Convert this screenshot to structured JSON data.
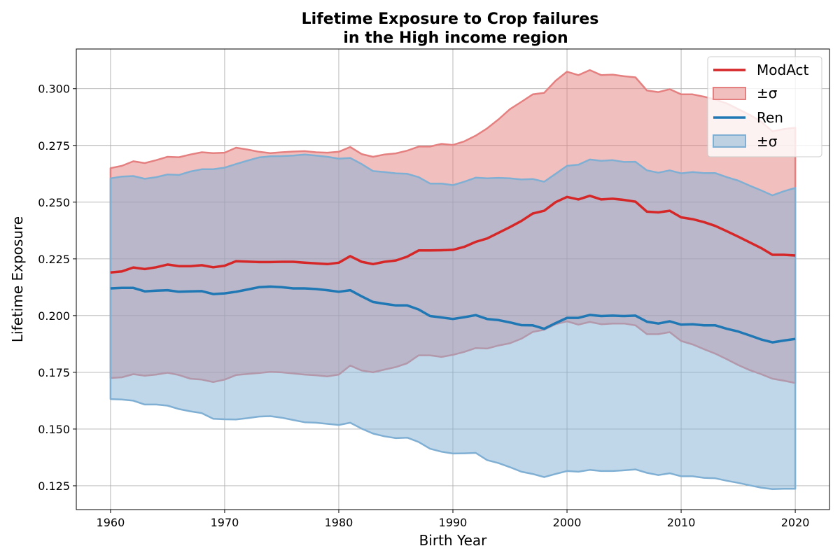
{
  "chart_data": {
    "type": "line",
    "title": "Lifetime Exposure to Crop failures",
    "subtitle": "in the High income region",
    "xlabel": "Birth Year",
    "ylabel": "Lifetime Exposure",
    "xlim": [
      1957,
      2023
    ],
    "ylim": [
      0.1145,
      0.3175
    ],
    "xticks": [
      1960,
      1970,
      1980,
      1990,
      2000,
      2010,
      2020
    ],
    "yticks": [
      0.125,
      0.15,
      0.175,
      0.2,
      0.225,
      0.25,
      0.275,
      0.3
    ],
    "grid": true,
    "legend_position": "top-right",
    "legend_band_label": "±σ",
    "x": [
      1960,
      1961,
      1962,
      1963,
      1964,
      1965,
      1966,
      1967,
      1968,
      1969,
      1970,
      1971,
      1972,
      1973,
      1974,
      1975,
      1976,
      1977,
      1978,
      1979,
      1980,
      1981,
      1982,
      1983,
      1984,
      1985,
      1986,
      1987,
      1988,
      1989,
      1990,
      1991,
      1992,
      1993,
      1994,
      1995,
      1996,
      1997,
      1998,
      1999,
      2000,
      2001,
      2002,
      2003,
      2004,
      2005,
      2006,
      2007,
      2008,
      2009,
      2010,
      2011,
      2012,
      2013,
      2014,
      2015,
      2016,
      2017,
      2018,
      2019,
      2020
    ],
    "series": [
      {
        "name": "ModAct",
        "color": "#d62728",
        "band_color": "#e58080",
        "mean": [
          0.219,
          0.2195,
          0.2212,
          0.2205,
          0.2213,
          0.2225,
          0.2218,
          0.2218,
          0.2222,
          0.2213,
          0.222,
          0.224,
          0.2238,
          0.2236,
          0.2236,
          0.2237,
          0.2237,
          0.2233,
          0.223,
          0.2227,
          0.2233,
          0.2262,
          0.2237,
          0.2227,
          0.2237,
          0.2243,
          0.226,
          0.2287,
          0.2287,
          0.2288,
          0.229,
          0.2303,
          0.2325,
          0.234,
          0.2365,
          0.239,
          0.2417,
          0.245,
          0.2462,
          0.25,
          0.2523,
          0.2512,
          0.2528,
          0.2512,
          0.2515,
          0.251,
          0.2502,
          0.2458,
          0.2455,
          0.2462,
          0.2433,
          0.2425,
          0.2412,
          0.2395,
          0.2372,
          0.2348,
          0.2323,
          0.2298,
          0.2268,
          0.2268,
          0.2265
        ],
        "upper": [
          0.265,
          0.266,
          0.268,
          0.2672,
          0.2685,
          0.27,
          0.2698,
          0.271,
          0.272,
          0.2716,
          0.2718,
          0.274,
          0.2732,
          0.2722,
          0.2716,
          0.272,
          0.2723,
          0.2725,
          0.272,
          0.2718,
          0.2722,
          0.2743,
          0.2712,
          0.27,
          0.271,
          0.2715,
          0.2727,
          0.2745,
          0.2745,
          0.2757,
          0.2752,
          0.2768,
          0.2793,
          0.2825,
          0.2865,
          0.291,
          0.2942,
          0.2975,
          0.2982,
          0.3035,
          0.3075,
          0.306,
          0.3082,
          0.306,
          0.3062,
          0.3055,
          0.305,
          0.2992,
          0.2985,
          0.2998,
          0.2975,
          0.2975,
          0.2965,
          0.2952,
          0.2935,
          0.291,
          0.2885,
          0.2855,
          0.2812,
          0.2822,
          0.2828
        ],
        "lower": [
          0.1725,
          0.1728,
          0.1742,
          0.1735,
          0.174,
          0.1748,
          0.1738,
          0.1722,
          0.1718,
          0.1707,
          0.1718,
          0.1738,
          0.1743,
          0.1747,
          0.1752,
          0.175,
          0.1745,
          0.174,
          0.1737,
          0.1732,
          0.174,
          0.178,
          0.1758,
          0.175,
          0.1762,
          0.1773,
          0.179,
          0.1825,
          0.1825,
          0.1818,
          0.1827,
          0.184,
          0.1857,
          0.1855,
          0.1868,
          0.1878,
          0.1898,
          0.1928,
          0.1938,
          0.1962,
          0.1975,
          0.196,
          0.1972,
          0.1962,
          0.1965,
          0.1965,
          0.1957,
          0.1918,
          0.1918,
          0.1927,
          0.1888,
          0.1873,
          0.1852,
          0.1832,
          0.1808,
          0.1782,
          0.176,
          0.1742,
          0.1722,
          0.1713,
          0.1703
        ]
      },
      {
        "name": "Ren",
        "color": "#1f77b4",
        "band_color": "#80afd4",
        "mean": [
          0.212,
          0.2122,
          0.2122,
          0.2107,
          0.211,
          0.2112,
          0.2105,
          0.2107,
          0.2108,
          0.2095,
          0.2098,
          0.2105,
          0.2115,
          0.2125,
          0.2128,
          0.2125,
          0.212,
          0.212,
          0.2117,
          0.2112,
          0.2105,
          0.2112,
          0.2085,
          0.206,
          0.2052,
          0.2045,
          0.2045,
          0.2027,
          0.1998,
          0.1992,
          0.1985,
          0.1993,
          0.2002,
          0.1985,
          0.198,
          0.197,
          0.1958,
          0.1957,
          0.1942,
          0.1967,
          0.199,
          0.199,
          0.2003,
          0.1998,
          0.2,
          0.1998,
          0.2,
          0.1973,
          0.1965,
          0.1975,
          0.196,
          0.1962,
          0.1957,
          0.1957,
          0.1942,
          0.193,
          0.1913,
          0.1895,
          0.1882,
          0.189,
          0.1897
        ],
        "upper": [
          0.2605,
          0.2613,
          0.2615,
          0.2603,
          0.261,
          0.2622,
          0.262,
          0.2635,
          0.2645,
          0.2645,
          0.2652,
          0.2668,
          0.2683,
          0.2697,
          0.2702,
          0.2703,
          0.2705,
          0.271,
          0.2705,
          0.27,
          0.2692,
          0.2695,
          0.2668,
          0.2637,
          0.2633,
          0.2627,
          0.2625,
          0.261,
          0.2582,
          0.2582,
          0.2575,
          0.259,
          0.2608,
          0.2605,
          0.2607,
          0.2605,
          0.26,
          0.2602,
          0.259,
          0.2625,
          0.266,
          0.2665,
          0.2688,
          0.2682,
          0.2685,
          0.2677,
          0.2678,
          0.264,
          0.263,
          0.264,
          0.2627,
          0.2633,
          0.2628,
          0.2628,
          0.261,
          0.2595,
          0.2573,
          0.2552,
          0.253,
          0.2548,
          0.2563
        ],
        "lower": [
          0.1632,
          0.163,
          0.1625,
          0.1608,
          0.1608,
          0.1603,
          0.1588,
          0.1578,
          0.157,
          0.1545,
          0.1543,
          0.1542,
          0.1548,
          0.1555,
          0.1557,
          0.155,
          0.154,
          0.153,
          0.1528,
          0.1523,
          0.1518,
          0.1528,
          0.1502,
          0.148,
          0.1468,
          0.146,
          0.1462,
          0.1443,
          0.1413,
          0.14,
          0.1392,
          0.1393,
          0.1395,
          0.1363,
          0.135,
          0.1332,
          0.1312,
          0.1302,
          0.1288,
          0.1302,
          0.1315,
          0.1312,
          0.132,
          0.1315,
          0.1315,
          0.1318,
          0.1322,
          0.1307,
          0.1297,
          0.1305,
          0.1292,
          0.1292,
          0.1285,
          0.1283,
          0.1272,
          0.1263,
          0.1252,
          0.1242,
          0.1235,
          0.1237,
          0.1237
        ]
      }
    ]
  }
}
